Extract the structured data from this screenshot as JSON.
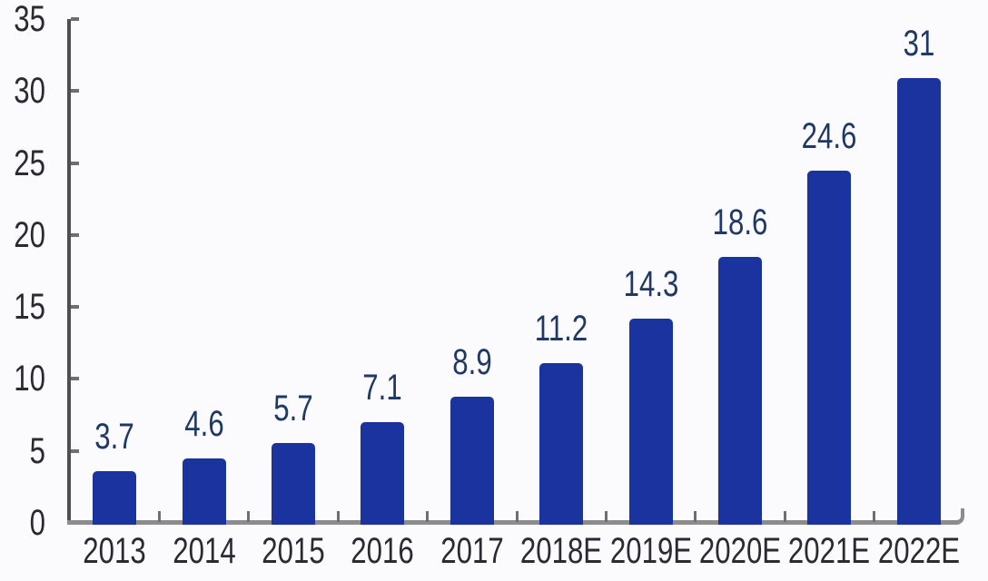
{
  "chart_data": {
    "type": "bar",
    "categories": [
      "2013",
      "2014",
      "2015",
      "2016",
      "2017",
      "2018E",
      "2019E",
      "2020E",
      "2021E",
      "2022E"
    ],
    "values": [
      3.7,
      4.6,
      5.7,
      7.1,
      8.9,
      11.2,
      14.3,
      18.6,
      24.6,
      31
    ],
    "value_labels": [
      "3.7",
      "4.6",
      "5.7",
      "7.1",
      "8.9",
      "11.2",
      "14.3",
      "18.6",
      "24.6",
      "31"
    ],
    "title": "",
    "xlabel": "",
    "ylabel": "",
    "ylim": [
      0,
      35
    ],
    "yticks": [
      0,
      5,
      10,
      15,
      20,
      25,
      30,
      35
    ],
    "grid": false,
    "legend": false,
    "layout_hints": {
      "value_labels_position": "above-bars",
      "tick_direction": "inside",
      "axis_end_hook": "up"
    },
    "colors": {
      "bar": "#1b339e",
      "value_label": "#1f3864",
      "axis_label": "#2b2a33",
      "x_axis_line": "#8c8c8c",
      "y_axis_line": "#4f4f52",
      "tick_mark": "#6f6f6f",
      "background": "#fbfafc"
    }
  }
}
